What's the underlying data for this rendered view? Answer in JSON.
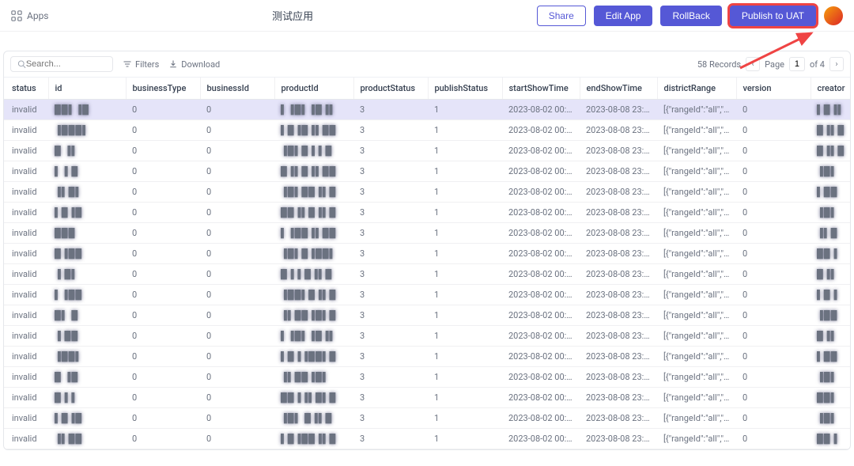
{
  "topbar": {
    "apps_label": "Apps",
    "title": "测试应用",
    "share_label": "Share",
    "edit_label": "Edit App",
    "rollback_label": "RollBack",
    "publish_label": "Publish to UAT"
  },
  "toolbar": {
    "search_placeholder": "Search...",
    "filters_label": "Filters",
    "download_label": "Download",
    "records_label": "58 Records",
    "page_label": "Page",
    "current_page": "1",
    "of_label": "of 4"
  },
  "columns": [
    "status",
    "id",
    "businessType",
    "businessId",
    "productId",
    "productStatus",
    "publishStatus",
    "startShowTime",
    "endShowTime",
    "districtRange",
    "version",
    "creator"
  ],
  "rows": [
    {
      "status": "invalid",
      "id": "██▌▐█",
      "btype": "0",
      "bid": "0",
      "pid": "▌▐█▌▐█▐▌",
      "pstatus": "3",
      "pubstatus": "1",
      "start": "2023-08-02 00:0...",
      "end": "2023-08-08 23:5...",
      "district": "[{\"rangeId\":\"all\",\"ra...",
      "version": "0",
      "creator": "▌█▐▌"
    },
    {
      "status": "invalid",
      "id": "▐███▌",
      "btype": "0",
      "bid": "0",
      "pid": "▌█▐█▐▌██",
      "pstatus": "3",
      "pubstatus": "1",
      "start": "2023-08-02 00:0...",
      "end": "2023-08-08 23:5...",
      "district": "[{\"rangeId\":\"all\",\"ra...",
      "version": "0",
      "creator": "█▐▌█"
    },
    {
      "status": "invalid",
      "id": "█ ▐▌",
      "btype": "0",
      "bid": "0",
      "pid": "▐█▌█▐ ▌█",
      "pstatus": "3",
      "pubstatus": "1",
      "start": "2023-08-02 00:0...",
      "end": "2023-08-08 23:5...",
      "district": "[{\"rangeId\":\"all\",\"ra...",
      "version": "0",
      "creator": "█▐▌█"
    },
    {
      "status": "invalid",
      "id": "▌▐ █",
      "btype": "0",
      "bid": "0",
      "pid": "█▐▌█▐▌██",
      "pstatus": "3",
      "pubstatus": "1",
      "start": "2023-08-02 00:0...",
      "end": "2023-08-08 23:5...",
      "district": "[{\"rangeId\":\"all\",\"ra...",
      "version": "0",
      "creator": "▐█▌"
    },
    {
      "status": "invalid",
      "id": "▐▌█▌",
      "btype": "0",
      "bid": "0",
      "pid": "▐█▌██▐▌█",
      "pstatus": "3",
      "pubstatus": "1",
      "start": "2023-08-02 00:0...",
      "end": "2023-08-08 23:5...",
      "district": "[{\"rangeId\":\"all\",\"ra...",
      "version": "0",
      "creator": "▌██"
    },
    {
      "status": "invalid",
      "id": "▌█▐█",
      "btype": "0",
      "bid": "0",
      "pid": "██▐▌█▐▌█",
      "pstatus": "3",
      "pubstatus": "1",
      "start": "2023-08-02 00:0...",
      "end": "2023-08-08 23:5...",
      "district": "[{\"rangeId\":\"all\",\"ra...",
      "version": "0",
      "creator": "▐█▌"
    },
    {
      "status": "invalid",
      "id": "███",
      "btype": "0",
      "bid": "0",
      "pid": "▌▐██▐▌██",
      "pstatus": "3",
      "pubstatus": "1",
      "start": "2023-08-02 00:0...",
      "end": "2023-08-08 23:5...",
      "district": "[{\"rangeId\":\"all\",\"ra...",
      "version": "0",
      "creator": "▐▌█"
    },
    {
      "status": "invalid",
      "id": "█▐██",
      "btype": "0",
      "bid": "0",
      "pid": "▐█▌█▐██▌",
      "pstatus": "3",
      "pubstatus": "1",
      "start": "2023-08-02 00:0...",
      "end": "2023-08-08 23:5...",
      "district": "[{\"rangeId\":\"all\",\"ra...",
      "version": "0",
      "creator": "██▐"
    },
    {
      "status": "invalid",
      "id": "▐ █▌",
      "btype": "0",
      "bid": "0",
      "pid": "█▐ ▌█▐▌█",
      "pstatus": "3",
      "pubstatus": "1",
      "start": "2023-08-02 00:0...",
      "end": "2023-08-08 23:5...",
      "district": "[{\"rangeId\":\"all\",\"ra...",
      "version": "0",
      "creator": "█▐▌"
    },
    {
      "status": "invalid",
      "id": "▌▐██",
      "btype": "0",
      "bid": "0",
      "pid": "▐██▌█▐▌█",
      "pstatus": "3",
      "pubstatus": "1",
      "start": "2023-08-02 00:0...",
      "end": "2023-08-08 23:5...",
      "district": "[{\"rangeId\":\"all\",\"ra...",
      "version": "0",
      "creator": "▌█▐"
    },
    {
      "status": "invalid",
      "id": "█▌ █",
      "btype": "0",
      "bid": "0",
      "pid": "▐▌██▐█▌█",
      "pstatus": "3",
      "pubstatus": "1",
      "start": "2023-08-02 00:0...",
      "end": "2023-08-08 23:5...",
      "district": "[{\"rangeId\":\"all\",\"ra...",
      "version": "0",
      "creator": "▐██"
    },
    {
      "status": "invalid",
      "id": "▐ ██",
      "btype": "0",
      "bid": "0",
      "pid": "▌▐█▌▐█▐▌",
      "pstatus": "3",
      "pubstatus": "1",
      "start": "2023-08-02 00:0...",
      "end": "2023-08-08 23:5...",
      "district": "[{\"rangeId\":\"all\",\"ra...",
      "version": "0",
      "creator": "█▐▌"
    },
    {
      "status": "invalid",
      "id": "▐██▌",
      "btype": "0",
      "bid": "0",
      "pid": "▌█▐▐██▌█",
      "pstatus": "3",
      "pubstatus": "1",
      "start": "2023-08-02 00:0...",
      "end": "2023-08-08 23:5...",
      "district": "[{\"rangeId\":\"all\",\"ra...",
      "version": "0",
      "creator": "▌██"
    },
    {
      "status": "invalid",
      "id": "█ ▐█",
      "btype": "0",
      "bid": "0",
      "pid": "▐▌██▐█▌ ",
      "pstatus": "3",
      "pubstatus": "1",
      "start": "2023-08-02 00:0...",
      "end": "2023-08-08 23:5...",
      "district": "[{\"rangeId\":\"all\",\"ra...",
      "version": "0",
      "creator": "▐█▌"
    },
    {
      "status": "invalid",
      "id": "█▐ ▌",
      "btype": "0",
      "bid": "0",
      "pid": "██▐▐▌█▌█",
      "pstatus": "3",
      "pubstatus": "1",
      "start": "2023-08-02 00:0...",
      "end": "2023-08-08 23:5...",
      "district": "[{\"rangeId\":\"all\",\"ra...",
      "version": "0",
      "creator": "██▌"
    },
    {
      "status": "invalid",
      "id": "▌█▐█",
      "btype": "0",
      "bid": "0",
      "pid": "▐█▌ █▐▌█",
      "pstatus": "3",
      "pubstatus": "1",
      "start": "2023-08-02 00:0...",
      "end": "2023-08-08 23:5...",
      "district": "[{\"rangeId\":\"all\",\"ra...",
      "version": "0",
      "creator": "▐█▌"
    },
    {
      "status": "invalid",
      "id": "▐▌██",
      "btype": "0",
      "bid": "0",
      "pid": "▌█▐██▐▌█",
      "pstatus": "3",
      "pubstatus": "1",
      "start": "2023-08-02 00:0...",
      "end": "2023-08-08 23:5...",
      "district": "[{\"rangeId\":\"all\",\"ra...",
      "version": "0",
      "creator": "██▐"
    }
  ],
  "colors": {
    "primary": "#5558d6",
    "highlight_border": "#ef4444",
    "selected_row": "#e5e4f9",
    "text_muted": "#6b7280",
    "border": "#e5e7eb"
  }
}
